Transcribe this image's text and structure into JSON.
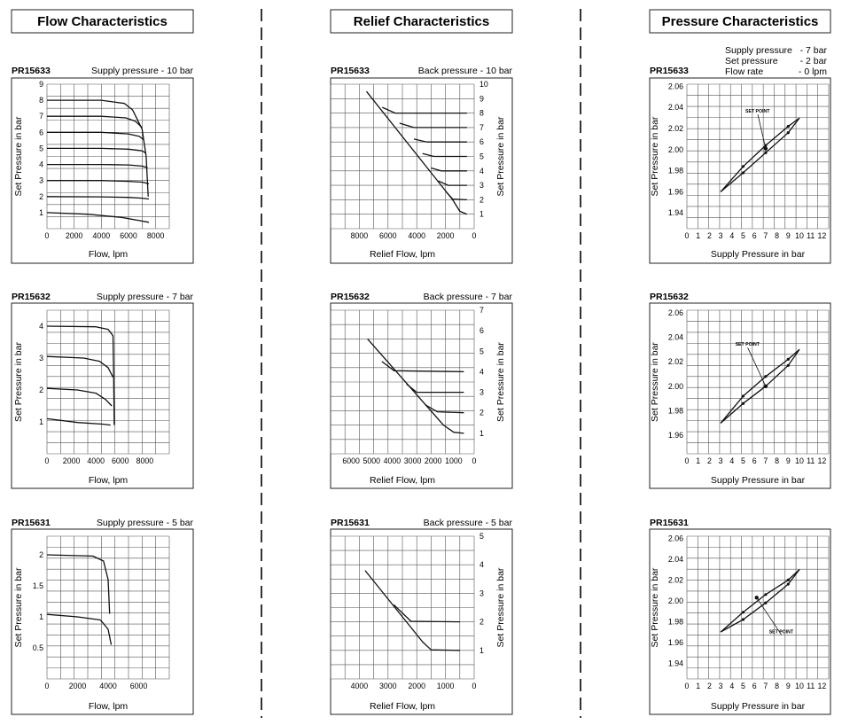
{
  "columns": [
    {
      "title": "Flow Characteristics"
    },
    {
      "title": "Relief Characteristics"
    },
    {
      "title": "Pressure Characteristics"
    }
  ],
  "supply_note": {
    "lines": [
      {
        "label": "Supply pressure",
        "value": "- 7 bar"
      },
      {
        "label": "Set pressure",
        "value": "- 2 bar"
      },
      {
        "label": "Flow rate",
        "value": "- 0 lpm"
      }
    ]
  },
  "chart_data": [
    {
      "id": "flow-pr15633",
      "type": "line",
      "model": "PR15633",
      "note": "Supply pressure - 10 bar",
      "xlabel": "Flow, lpm",
      "ylabel": "Set Pressure in bar",
      "xlim": [
        0,
        9000
      ],
      "ylim": [
        0,
        9
      ],
      "xticks": [
        0,
        2000,
        4000,
        6000,
        8000
      ],
      "yticks": [
        1,
        2,
        3,
        4,
        5,
        6,
        7,
        8,
        9
      ],
      "series": [
        {
          "x": [
            0,
            3000,
            5500,
            6800,
            7500
          ],
          "y": [
            1.0,
            0.9,
            0.7,
            0.5,
            0.4
          ]
        },
        {
          "x": [
            0,
            4000,
            6000,
            7000,
            7500
          ],
          "y": [
            2.0,
            1.98,
            1.95,
            1.9,
            1.85
          ]
        },
        {
          "x": [
            0,
            4000,
            6000,
            7000,
            7500
          ],
          "y": [
            3.0,
            3.0,
            2.95,
            2.9,
            2.8
          ]
        },
        {
          "x": [
            0,
            4000,
            6000,
            7000,
            7400
          ],
          "y": [
            4.0,
            4.0,
            3.97,
            3.9,
            3.8
          ]
        },
        {
          "x": [
            0,
            4000,
            6000,
            7000,
            7300
          ],
          "y": [
            5.0,
            5.0,
            4.95,
            4.85,
            4.7
          ]
        },
        {
          "x": [
            0,
            4000,
            6000,
            6800,
            7100
          ],
          "y": [
            6.0,
            6.0,
            5.9,
            5.75,
            5.55
          ]
        },
        {
          "x": [
            0,
            4000,
            5800,
            6500,
            7000
          ],
          "y": [
            7.0,
            7.0,
            6.9,
            6.7,
            6.3
          ]
        },
        {
          "x": [
            0,
            4000,
            5700,
            6300,
            7000,
            7300,
            7450
          ],
          "y": [
            8.0,
            8.0,
            7.8,
            7.4,
            6.2,
            4.5,
            2.0
          ]
        }
      ]
    },
    {
      "id": "flow-pr15632",
      "type": "line",
      "model": "PR15632",
      "note": "Supply pressure - 7 bar",
      "xlabel": "Flow, lpm",
      "ylabel": "Set Pressure in bar",
      "xlim": [
        0,
        10000
      ],
      "ylim": [
        0,
        4.5
      ],
      "xticks": [
        0,
        2000,
        4000,
        6000,
        8000
      ],
      "yticks": [
        1,
        2,
        3,
        4
      ],
      "series": [
        {
          "x": [
            0,
            2500,
            4500,
            5200
          ],
          "y": [
            1.1,
            0.98,
            0.93,
            0.9
          ]
        },
        {
          "x": [
            0,
            2500,
            4000,
            4800,
            5300
          ],
          "y": [
            2.05,
            2.0,
            1.9,
            1.7,
            1.5
          ]
        },
        {
          "x": [
            0,
            3000,
            4300,
            5000,
            5400
          ],
          "y": [
            3.05,
            3.0,
            2.9,
            2.7,
            2.4
          ]
        },
        {
          "x": [
            0,
            4000,
            5000,
            5400,
            5450,
            5500
          ],
          "y": [
            4.0,
            3.98,
            3.9,
            3.7,
            2.5,
            0.9
          ]
        }
      ]
    },
    {
      "id": "flow-pr15631",
      "type": "line",
      "model": "PR15631",
      "note": "Supply pressure - 5 bar",
      "xlabel": "Flow, lpm",
      "ylabel": "Set Pressure in bar",
      "xlim": [
        0,
        8000
      ],
      "ylim": [
        0,
        2.3
      ],
      "xticks": [
        0,
        2000,
        4000,
        6000
      ],
      "yticks": [
        0.5,
        1,
        1.5,
        2
      ],
      "ytick_labels": [
        "0.5",
        "1",
        "1.5",
        "2"
      ],
      "series": [
        {
          "x": [
            0,
            2000,
            3500,
            4000,
            4200
          ],
          "y": [
            1.04,
            1.0,
            0.95,
            0.8,
            0.55
          ]
        },
        {
          "x": [
            0,
            3000,
            3700,
            4000,
            4100
          ],
          "y": [
            2.0,
            1.98,
            1.9,
            1.6,
            1.05
          ]
        }
      ]
    },
    {
      "id": "relief-pr15633",
      "type": "line",
      "model": "PR15633",
      "note": "Back pressure - 10 bar",
      "xlabel": "Relief Flow, lpm",
      "ylabel": "Set Pressure in bar",
      "xlim": [
        10000,
        0
      ],
      "ylim": [
        0,
        10
      ],
      "xticks": [
        8000,
        6000,
        4000,
        2000,
        0
      ],
      "yticks": [
        1,
        2,
        3,
        4,
        5,
        6,
        7,
        8,
        9,
        10
      ],
      "series": [
        {
          "x": [
            7500,
            1500,
            1000,
            500
          ],
          "y": [
            9.5,
            2.0,
            1.2,
            1.0
          ]
        },
        {
          "x": [
            2000,
            1500,
            500
          ],
          "y": [
            2.6,
            2.05,
            2.0
          ]
        },
        {
          "x": [
            2500,
            1800,
            500
          ],
          "y": [
            3.3,
            3.0,
            3.0
          ]
        },
        {
          "x": [
            3000,
            2300,
            500
          ],
          "y": [
            4.2,
            4.0,
            4.0
          ]
        },
        {
          "x": [
            3600,
            2800,
            500
          ],
          "y": [
            5.2,
            5.0,
            5.0
          ]
        },
        {
          "x": [
            4200,
            3300,
            500
          ],
          "y": [
            6.2,
            6.0,
            6.0
          ]
        },
        {
          "x": [
            5200,
            4200,
            500
          ],
          "y": [
            7.3,
            7.0,
            7.0
          ]
        },
        {
          "x": [
            6400,
            5500,
            500
          ],
          "y": [
            8.4,
            8.0,
            8.0
          ]
        }
      ]
    },
    {
      "id": "relief-pr15632",
      "type": "line",
      "model": "PR15632",
      "note": "Back pressure - 7 bar",
      "xlabel": "Relief Flow, lpm",
      "ylabel": "Set Pressure in bar",
      "xlim": [
        7000,
        0
      ],
      "ylim": [
        0,
        7
      ],
      "xticks": [
        6000,
        5000,
        4000,
        3000,
        2000,
        1000,
        0
      ],
      "yticks": [
        1,
        2,
        3,
        4,
        5,
        6,
        7
      ],
      "series": [
        {
          "x": [
            5200,
            1500,
            1000,
            500
          ],
          "y": [
            5.6,
            1.4,
            1.05,
            1.0
          ]
        },
        {
          "x": [
            2400,
            1800,
            500
          ],
          "y": [
            2.4,
            2.05,
            2.0
          ]
        },
        {
          "x": [
            3300,
            2800,
            500
          ],
          "y": [
            3.4,
            3.0,
            3.0
          ]
        },
        {
          "x": [
            4500,
            3900,
            500
          ],
          "y": [
            4.5,
            4.05,
            4.0
          ]
        }
      ]
    },
    {
      "id": "relief-pr15631",
      "type": "line",
      "model": "PR15631",
      "note": "Back pressure - 5 bar",
      "xlabel": "Relief Flow, lpm",
      "ylabel": "Set Pressure in bar",
      "xlim": [
        5000,
        0
      ],
      "ylim": [
        0,
        5
      ],
      "xticks": [
        4000,
        3000,
        2000,
        1000,
        0
      ],
      "yticks": [
        1,
        2,
        3,
        4,
        5
      ],
      "series": [
        {
          "x": [
            3800,
            1800,
            1500,
            500
          ],
          "y": [
            3.8,
            1.3,
            1.02,
            1.0
          ]
        },
        {
          "x": [
            2800,
            2200,
            500
          ],
          "y": [
            2.6,
            2.02,
            2.0
          ]
        }
      ]
    },
    {
      "id": "pressure-pr15633",
      "type": "line",
      "model": "PR15633",
      "xlabel": "Supply Pressure in bar",
      "ylabel": "Set Pressure in bar",
      "xlim": [
        0,
        12.6
      ],
      "ylim": [
        1.925,
        2.062
      ],
      "xticks": [
        0,
        1,
        2,
        3,
        4,
        5,
        6,
        7,
        8,
        9,
        10,
        11,
        12
      ],
      "yticks": [
        1.94,
        1.96,
        1.98,
        2.0,
        2.02,
        2.04,
        2.06
      ],
      "ytick_labels": [
        "1.94",
        "1.96",
        "1.98",
        "2.00",
        "2.02",
        "2.04",
        "2.06"
      ],
      "annotation": {
        "text": "SET POINT",
        "x": 5.2,
        "y": 2.035,
        "arrow_to": [
          7.0,
          2.001
        ]
      },
      "series": [
        {
          "x": [
            3.0,
            5.0,
            7.0,
            9.0,
            10.0
          ],
          "y": [
            1.96,
            1.984,
            2.004,
            2.022,
            2.03
          ]
        },
        {
          "x": [
            3.0,
            5.0,
            7.0,
            9.0,
            10.0
          ],
          "y": [
            1.96,
            1.978,
            1.997,
            2.016,
            2.03
          ]
        }
      ]
    },
    {
      "id": "pressure-pr15632",
      "type": "line",
      "model": "PR15632",
      "xlabel": "Supply Pressure in bar",
      "ylabel": "Set Pressure in bar",
      "xlim": [
        0,
        12.6
      ],
      "ylim": [
        1.945,
        2.062
      ],
      "xticks": [
        0,
        1,
        2,
        3,
        4,
        5,
        6,
        7,
        8,
        9,
        10,
        11,
        12
      ],
      "yticks": [
        1.96,
        1.98,
        2.0,
        2.02,
        2.04,
        2.06
      ],
      "ytick_labels": [
        "1.96",
        "1.98",
        "2.00",
        "2.02",
        "2.04",
        "2.06"
      ],
      "annotation": {
        "text": "SET POINT",
        "x": 4.3,
        "y": 2.033,
        "arrow_to": [
          7.0,
          2.0
        ]
      },
      "series": [
        {
          "x": [
            3.0,
            5.0,
            7.0,
            9.0,
            10.0
          ],
          "y": [
            1.97,
            1.992,
            2.008,
            2.022,
            2.03
          ]
        },
        {
          "x": [
            3.0,
            5.0,
            7.0,
            9.0,
            10.0
          ],
          "y": [
            1.97,
            1.986,
            2.0,
            2.017,
            2.03
          ]
        }
      ]
    },
    {
      "id": "pressure-pr15631",
      "type": "line",
      "model": "PR15631",
      "xlabel": "Supply Pressure in bar",
      "ylabel": "Set Pressure in bar",
      "xlim": [
        0,
        12.6
      ],
      "ylim": [
        1.925,
        2.062
      ],
      "xticks": [
        0,
        1,
        2,
        3,
        4,
        5,
        6,
        7,
        8,
        9,
        10,
        11,
        12
      ],
      "yticks": [
        1.94,
        1.96,
        1.98,
        2.0,
        2.02,
        2.04,
        2.06
      ],
      "ytick_labels": [
        "1.94",
        "1.96",
        "1.98",
        "2.00",
        "2.02",
        "2.04",
        "2.06"
      ],
      "annotation": {
        "text": "SET POINT",
        "x": 7.3,
        "y": 1.969,
        "arrow_to": [
          6.2,
          2.003
        ]
      },
      "series": [
        {
          "x": [
            3.0,
            5.0,
            7.0,
            9.0,
            10.0
          ],
          "y": [
            1.97,
            1.989,
            2.006,
            2.02,
            2.03
          ]
        },
        {
          "x": [
            3.0,
            5.0,
            7.0,
            9.0,
            10.0
          ],
          "y": [
            1.97,
            1.982,
            1.998,
            2.016,
            2.03
          ]
        }
      ]
    }
  ]
}
